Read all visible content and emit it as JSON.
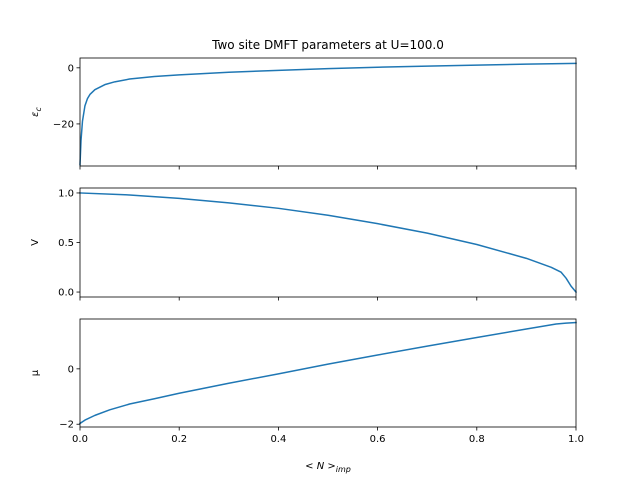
{
  "chart_data": {
    "title": "Two site DMFT parameters at U=100.0",
    "xlabel_main": "< N >",
    "xlabel_sub": "imp",
    "xlim": [
      0.0,
      1.0
    ],
    "x_ticks": [
      0.0,
      0.2,
      0.4,
      0.6,
      0.8,
      1.0
    ],
    "x_tick_labels": [
      "0.0",
      "0.2",
      "0.4",
      "0.6",
      "0.8",
      "1.0"
    ],
    "line_color": "#1f77b4",
    "subplots": [
      {
        "type": "line",
        "ylabel_main": "ε",
        "ylabel_sub": "c",
        "ylim": [
          -35,
          3.5
        ],
        "y_ticks": [
          0,
          -20
        ],
        "y_tick_labels": [
          "0",
          "−20"
        ],
        "x": [
          0.0,
          0.002,
          0.005,
          0.01,
          0.015,
          0.02,
          0.03,
          0.05,
          0.07,
          0.1,
          0.15,
          0.2,
          0.3,
          0.4,
          0.5,
          0.6,
          0.7,
          0.8,
          0.9,
          1.0
        ],
        "y": [
          -34.5,
          -26,
          -19,
          -13.5,
          -11,
          -9.5,
          -7.8,
          -6.0,
          -5.0,
          -4.0,
          -3.1,
          -2.5,
          -1.6,
          -0.9,
          -0.3,
          0.2,
          0.6,
          0.95,
          1.3,
          1.6
        ]
      },
      {
        "type": "line",
        "ylabel_main": "V",
        "ylabel_sub": "",
        "ylim": [
          -0.05,
          1.05
        ],
        "y_ticks": [
          1.0,
          0.5,
          0.0
        ],
        "y_tick_labels": [
          "1.0",
          "0.5",
          "0.0"
        ],
        "x": [
          0.0,
          0.1,
          0.2,
          0.3,
          0.4,
          0.5,
          0.6,
          0.7,
          0.8,
          0.9,
          0.95,
          0.97,
          0.98,
          0.99,
          1.0
        ],
        "y": [
          1.0,
          0.98,
          0.945,
          0.9,
          0.845,
          0.775,
          0.69,
          0.595,
          0.48,
          0.34,
          0.25,
          0.2,
          0.14,
          0.06,
          0.0
        ]
      },
      {
        "type": "line",
        "ylabel_main": "μ",
        "ylabel_sub": "",
        "ylim": [
          -2.1,
          1.8
        ],
        "y_ticks": [
          0,
          -2
        ],
        "y_tick_labels": [
          "0",
          "−2"
        ],
        "x": [
          0.0,
          0.01,
          0.03,
          0.06,
          0.1,
          0.15,
          0.2,
          0.3,
          0.4,
          0.5,
          0.6,
          0.7,
          0.8,
          0.9,
          0.96,
          0.98,
          1.0
        ],
        "y": [
          -1.97,
          -1.85,
          -1.68,
          -1.48,
          -1.27,
          -1.08,
          -0.88,
          -0.52,
          -0.18,
          0.17,
          0.5,
          0.82,
          1.13,
          1.44,
          1.62,
          1.65,
          1.67
        ]
      }
    ]
  }
}
